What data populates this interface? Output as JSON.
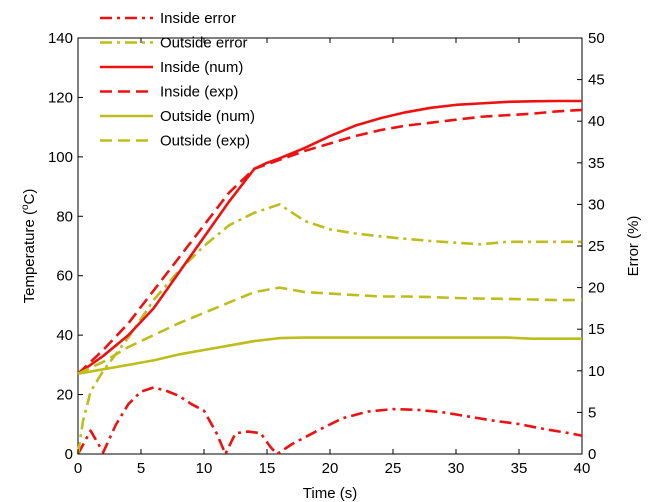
{
  "chart_data": {
    "type": "line",
    "xlabel": "Time (s)",
    "ylabel_left": "Temperature (",
    "ylabel_left_sup": "o",
    "ylabel_left_tail": "C)",
    "ylabel_right": "Error (%)",
    "xlim": [
      0,
      40
    ],
    "ylim_left": [
      0,
      140
    ],
    "ylim_right": [
      0,
      50
    ],
    "x_ticks": [
      "0",
      "5",
      "10",
      "15",
      "20",
      "25",
      "30",
      "35",
      "40"
    ],
    "y_left_ticks": [
      "0",
      "20",
      "40",
      "60",
      "80",
      "100",
      "120",
      "140"
    ],
    "y_right_ticks": [
      "0",
      "5",
      "10",
      "15",
      "20",
      "25",
      "30",
      "35",
      "40",
      "45",
      "50"
    ],
    "grid": false,
    "legend_position": "top-left",
    "colors": {
      "red": "#ee1111",
      "olive": "#bdbd1c"
    },
    "series": [
      {
        "name": "Inside error",
        "axis": "right",
        "color": "#ee1111",
        "style": "dashdot",
        "x": [
          0,
          1,
          2,
          3,
          4,
          5,
          6,
          7,
          8,
          9,
          10,
          11,
          11.7,
          12.5,
          13.5,
          14.5,
          15.3,
          15.8,
          17,
          19,
          21,
          23,
          25,
          27,
          29,
          31,
          33,
          35,
          37,
          39,
          40
        ],
        "y": [
          0,
          2.8,
          0.2,
          3.5,
          6,
          7.5,
          8,
          7.6,
          7,
          6,
          5.2,
          2.5,
          0,
          2.5,
          2.7,
          2.5,
          0.8,
          0,
          1.2,
          2.8,
          4.3,
          5.1,
          5.4,
          5.3,
          5,
          4.5,
          4,
          3.6,
          3,
          2.5,
          2.2
        ]
      },
      {
        "name": "Outside error",
        "axis": "right",
        "color": "#bdbd1c",
        "style": "dashdot",
        "x": [
          0,
          0.4,
          1,
          2,
          3,
          4,
          6,
          8,
          10,
          12,
          14,
          16,
          18,
          20,
          22,
          25,
          28,
          30,
          32,
          34,
          36,
          38,
          40
        ],
        "y": [
          0,
          4,
          7.5,
          10,
          12,
          14,
          18.5,
          22,
          25,
          27.5,
          29,
          30,
          28,
          27,
          26.5,
          26,
          25.6,
          25.4,
          25.2,
          25.5,
          25.5,
          25.5,
          25.5
        ]
      },
      {
        "name": "Inside (num)",
        "axis": "left",
        "color": "#ee1111",
        "style": "solid",
        "x": [
          0,
          2,
          4,
          6,
          8,
          10,
          12,
          14,
          15,
          16,
          18,
          20,
          22,
          24,
          26,
          28,
          30,
          32,
          34,
          36,
          38,
          40
        ],
        "y": [
          27,
          33,
          40,
          49,
          61,
          73,
          85,
          96,
          98,
          99.5,
          103,
          107,
          110.5,
          113,
          115,
          116.5,
          117.5,
          118,
          118.5,
          118.7,
          118.8,
          118.8
        ]
      },
      {
        "name": "Inside (exp)",
        "axis": "left",
        "color": "#ee1111",
        "style": "dashed",
        "x": [
          0,
          2,
          4,
          6,
          8,
          10,
          12,
          14,
          16,
          18,
          20,
          22,
          24,
          26,
          28,
          30,
          32,
          34,
          36,
          38,
          40
        ],
        "y": [
          27,
          35,
          44,
          55,
          66,
          77,
          88,
          96,
          99,
          102,
          104.5,
          107,
          109,
          110.5,
          111.5,
          112.5,
          113.5,
          114,
          114.5,
          115.3,
          115.8
        ]
      },
      {
        "name": "Outside (num)",
        "axis": "left",
        "color": "#bdbd1c",
        "style": "solid",
        "x": [
          0,
          2,
          4,
          6,
          8,
          10,
          12,
          14,
          16,
          18,
          20,
          22,
          24,
          26,
          28,
          30,
          32,
          34,
          36,
          38,
          40
        ],
        "y": [
          27,
          28.5,
          30,
          31.5,
          33.5,
          35,
          36.5,
          38,
          39,
          39.2,
          39.2,
          39.2,
          39.2,
          39.2,
          39.2,
          39.2,
          39.2,
          39.2,
          38.8,
          38.8,
          38.8
        ]
      },
      {
        "name": "Outside (exp)",
        "axis": "left",
        "color": "#bdbd1c",
        "style": "dashed",
        "x": [
          0,
          2,
          4,
          6,
          8,
          10,
          12,
          14,
          16,
          18,
          20,
          22,
          24,
          26,
          28,
          30,
          32,
          34,
          36,
          38,
          40
        ],
        "y": [
          27,
          31,
          36,
          40,
          44,
          47.5,
          51,
          54.5,
          56,
          54.5,
          54,
          53.5,
          53,
          53,
          52.8,
          52.5,
          52.3,
          52.2,
          52,
          51.8,
          51.8
        ]
      }
    ]
  }
}
